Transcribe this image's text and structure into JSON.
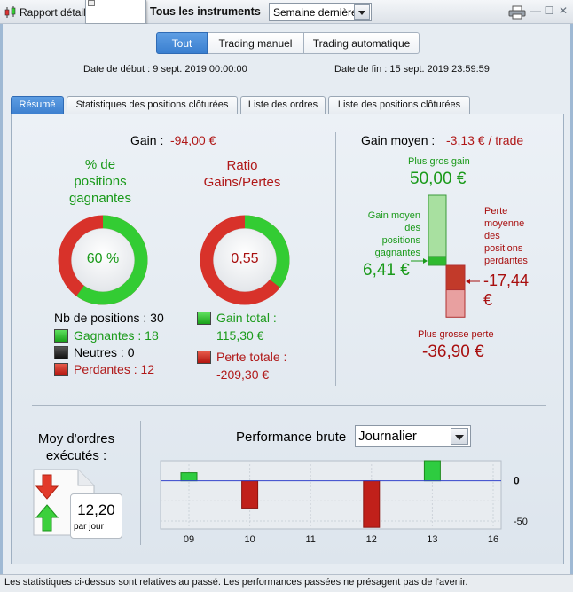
{
  "titlebar": {
    "title": "Rapport détaillé",
    "instruments": "Tous les instruments",
    "period": "Semaine dernière",
    "print_icon": "printer-icon",
    "minimize": "—",
    "maximize": "☐",
    "close": "✕"
  },
  "filters": {
    "buttons": [
      "Tout",
      "Trading manuel",
      "Trading automatique"
    ],
    "active": "Tout"
  },
  "dates": {
    "start": "Date de début :  9 sept. 2019 00:00:00",
    "end": "Date de fin :  15 sept. 2019 23:59:59"
  },
  "tabs": [
    "Résumé",
    "Statistiques des positions clôturées",
    "Liste des ordres",
    "Liste des positions clôturées"
  ],
  "summary": {
    "gain_label": "Gain : ",
    "gain_value": "-94,00 €",
    "win_pct_title": [
      "% de",
      "positions",
      "gagnantes"
    ],
    "win_pct_value": "60 %",
    "win_pct": 60,
    "ratio_title": [
      "Ratio",
      "Gains/Pertes"
    ],
    "ratio_value": "0,55",
    "ratio_green_fraction": 0.355,
    "nb_positions": "Nb de positions : 30",
    "gagnantes": "Gagnantes : 18",
    "neutres": "Neutres : 0",
    "perdantes": "Perdantes : 12",
    "gain_total_label": "Gain total :",
    "gain_total_value": "115,30 €",
    "perte_totale_label": "Perte totale :",
    "perte_totale_value": "-209,30 €"
  },
  "gain_moyen": {
    "label": "Gain moyen : ",
    "value": "-3,13 € / trade",
    "plus_gros_gain_label": "Plus gros gain",
    "plus_gros_gain_value": "50,00 €",
    "gain_moyen_label": [
      "Gain moyen",
      "des",
      "positions",
      "gagnantes"
    ],
    "gain_moyen_value": "6,41 €",
    "perte_moyenne_label": [
      "Perte",
      "moyenne",
      "des",
      "positions",
      "perdantes"
    ],
    "perte_moyenne_value": [
      "-17,44",
      "€"
    ],
    "plus_grosse_perte_label": "Plus grosse perte",
    "plus_grosse_perte_value": "-36,90 €",
    "max_gain": 50.0,
    "avg_gain": 6.41,
    "avg_loss": -17.44,
    "max_loss": -36.9
  },
  "orders": {
    "title": [
      "Moy d'ordres",
      "exécutés :"
    ],
    "value": "12,20",
    "unit": "par jour"
  },
  "performance": {
    "title": "Performance brute",
    "mode": "Journalier"
  },
  "chart_data": {
    "type": "bar",
    "categories": [
      "09",
      "10",
      "11",
      "12",
      "13",
      "16"
    ],
    "values": [
      10,
      -34,
      0,
      -58,
      25,
      0
    ],
    "yticks": [
      0,
      -50
    ],
    "ylim": [
      -60,
      25
    ],
    "zero_line_color": "#3344cc",
    "positive_color": "#2ecc40",
    "negative_color": "#c0201a"
  },
  "footer": {
    "text": "Les statistiques ci-dessus sont relatives au passé. Les performances passées ne présagent pas de l'avenir."
  },
  "colors": {
    "green": "#1a9a1a",
    "red": "#b01818",
    "accent": "#3a7fd0"
  }
}
